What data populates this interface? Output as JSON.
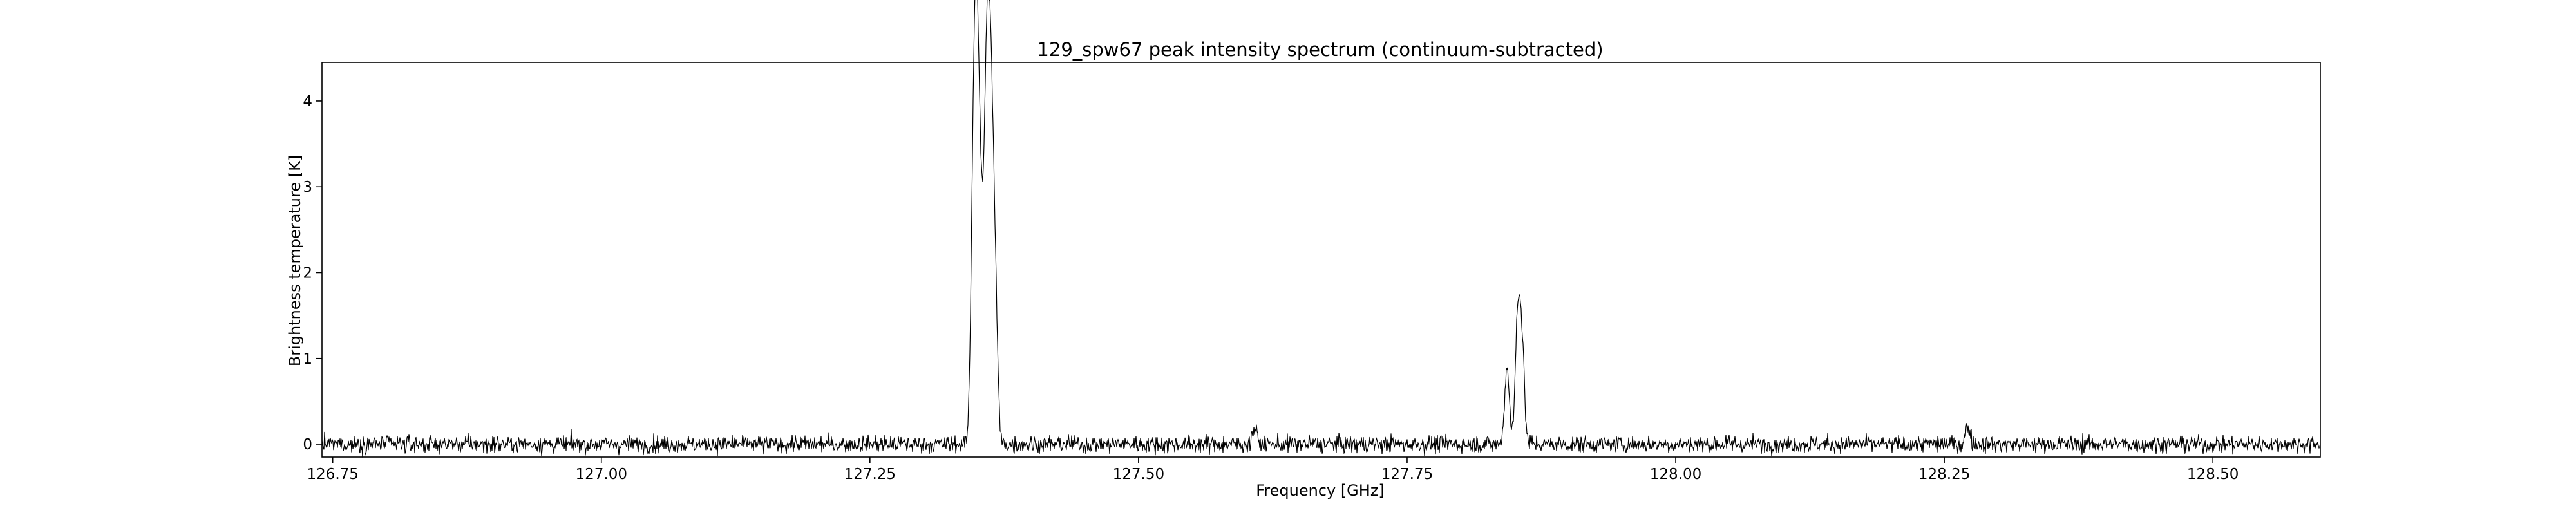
{
  "chart_data": {
    "type": "line",
    "title": "129_spw67 peak intensity spectrum (continuum-subtracted)",
    "xlabel": "Frequency [GHz]",
    "ylabel": "Brightness temperature [K]",
    "xlim": [
      126.74,
      128.6
    ],
    "ylim": [
      -0.15,
      4.45
    ],
    "x_ticks": [
      126.75,
      127.0,
      127.25,
      127.5,
      127.75,
      128.0,
      128.25,
      128.5
    ],
    "x_tick_labels": [
      "126.75",
      "127.00",
      "127.25",
      "127.50",
      "127.75",
      "128.00",
      "128.25",
      "128.50"
    ],
    "y_ticks": [
      0,
      1,
      2,
      3,
      4
    ],
    "y_tick_labels": [
      "0",
      "1",
      "2",
      "3",
      "4"
    ],
    "grid": false,
    "legend": "none",
    "colors": {
      "line": "#000000",
      "axes": "#000000",
      "background": "#ffffff"
    },
    "series": [
      {
        "x_start": 126.74,
        "x_end": 128.6,
        "noise_rms": 0.05,
        "baseline": 0.0,
        "peaks": [
          {
            "center": 127.346,
            "height": 2.5
          },
          {
            "center": 127.349,
            "height": 3.65
          },
          {
            "center": 127.352,
            "height": 2.2
          },
          {
            "center": 127.355,
            "height": 0.9
          },
          {
            "center": 127.358,
            "height": 2.9
          },
          {
            "center": 127.361,
            "height": 3.2
          },
          {
            "center": 127.364,
            "height": 2.2
          },
          {
            "center": 127.367,
            "height": 1.3
          },
          {
            "center": 127.843,
            "height": 0.9
          },
          {
            "center": 127.853,
            "height": 1.5
          },
          {
            "center": 127.857,
            "height": 1.1
          },
          {
            "center": 127.608,
            "height": 0.18
          },
          {
            "center": 128.272,
            "height": 0.2
          }
        ]
      }
    ]
  }
}
